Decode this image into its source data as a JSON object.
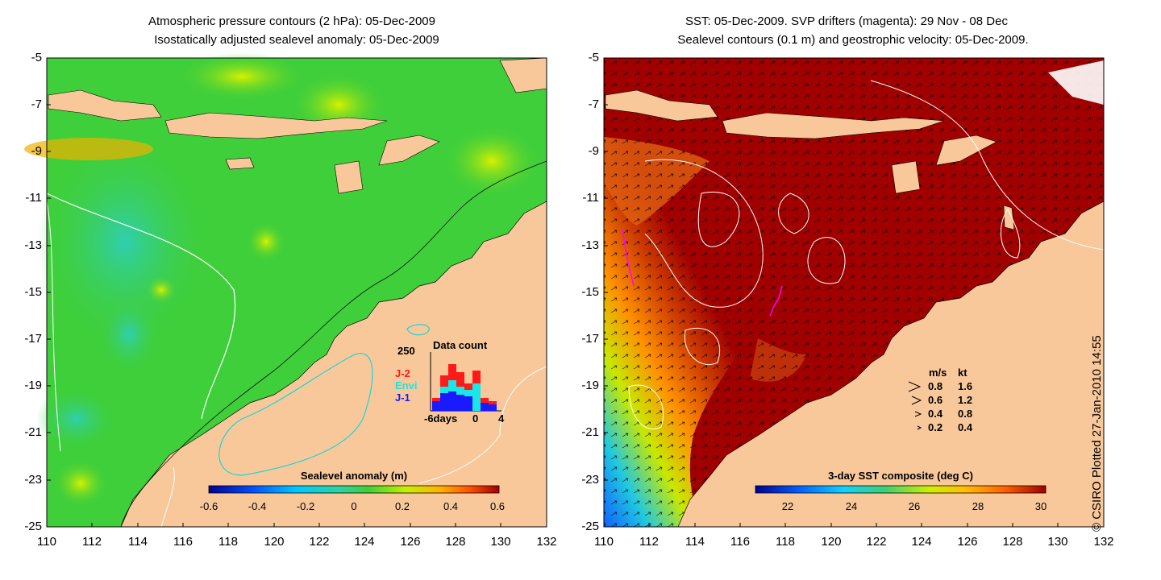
{
  "left_panel": {
    "title_line1": "Atmospheric pressure contours (2 hPa): 05-Dec-2009",
    "title_line2": "Isostatically adjusted sealevel anomaly: 05-Dec-2009",
    "colorbar_label": "Sealevel anomaly (m)",
    "colorbar_ticks": [
      "-0.6",
      "-0.4",
      "-0.2",
      "0",
      "0.2",
      "0.4",
      "0.6"
    ],
    "inset": {
      "title": "Data count",
      "ymax": "250",
      "legend": [
        {
          "label": "J-2",
          "color": "#ff1a1a"
        },
        {
          "label": "Envi",
          "color": "#19e6e6"
        },
        {
          "label": "J-1",
          "color": "#1a1aff"
        }
      ],
      "xticks": [
        "-6days",
        "0",
        "4"
      ]
    }
  },
  "right_panel": {
    "title_line1": "SST: 05-Dec-2009. SVP drifters (magenta): 29 Nov - 08 Dec",
    "title_line2": "Sealevel contours (0.1 m) and geostrophic velocity: 05-Dec-2009.",
    "colorbar_label": "3-day SST composite (deg C)",
    "colorbar_ticks": [
      "22",
      "24",
      "26",
      "28",
      "30"
    ],
    "velocity_legend": {
      "header": [
        "m/s",
        "kt"
      ],
      "rows": [
        {
          "ms": "0.8",
          "kt": "1.6"
        },
        {
          "ms": "0.6",
          "kt": "1.2"
        },
        {
          "ms": "0.4",
          "kt": "0.8"
        },
        {
          "ms": "0.2",
          "kt": "0.4"
        }
      ]
    }
  },
  "axes": {
    "lat_ticks": [
      "-5",
      "-7",
      "-9",
      "-11",
      "-13",
      "-15",
      "-17",
      "-19",
      "-21",
      "-23",
      "-25"
    ],
    "lon_ticks": [
      "110",
      "112",
      "114",
      "116",
      "118",
      "120",
      "122",
      "124",
      "126",
      "128",
      "130",
      "132"
    ]
  },
  "credit": "© CSIRO Plotted 27-Jan-2010 14:55",
  "colors": {
    "land": "#f9c89a",
    "sla_background": "#3fcf3a",
    "sst_warm": "#a00000"
  }
}
